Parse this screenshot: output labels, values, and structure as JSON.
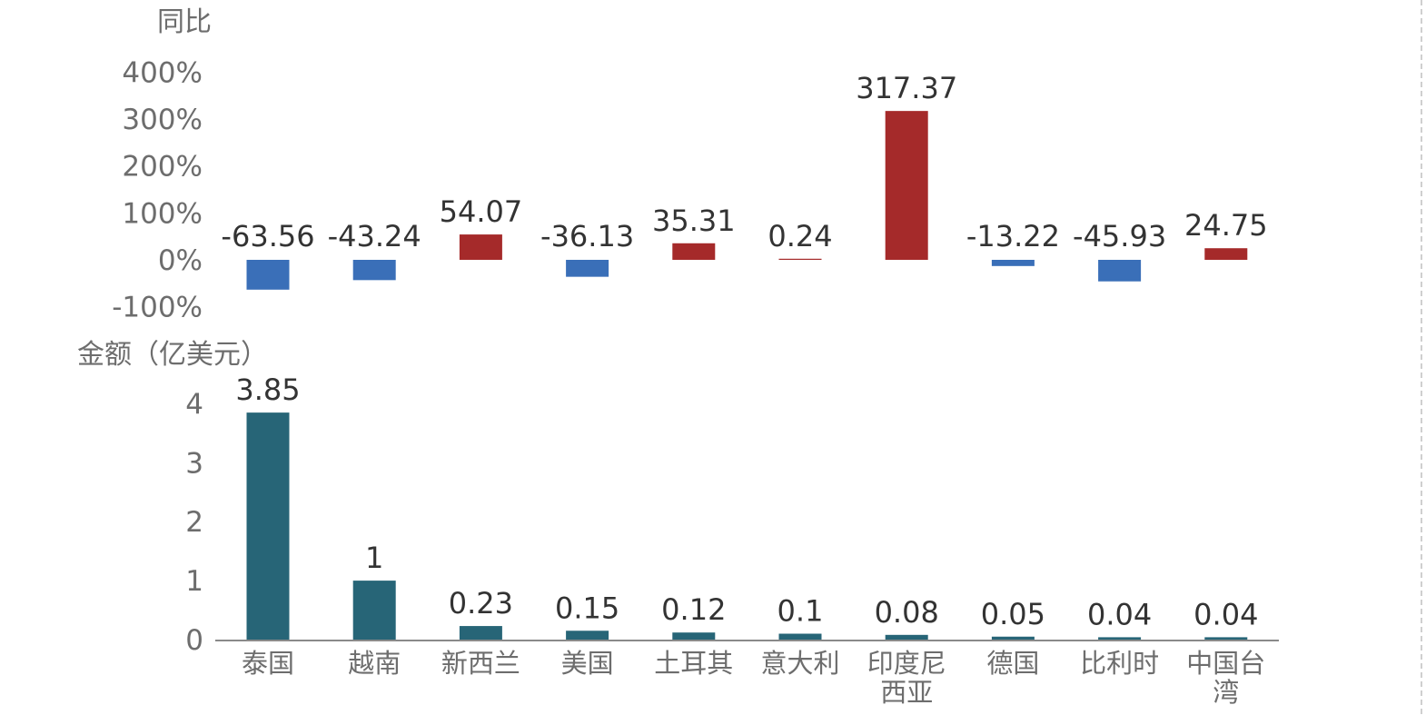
{
  "chart_data": [
    {
      "type": "bar",
      "ylabel": "同比",
      "yticks": [
        "400%",
        "300%",
        "200%",
        "100%",
        "0%",
        "-100%"
      ],
      "ytick_values": [
        400,
        300,
        200,
        100,
        0,
        -100
      ],
      "ylim": [
        -100,
        400
      ],
      "categories": [
        "泰国",
        "越南",
        "新西兰",
        "美国",
        "土耳其",
        "意大利",
        "印度尼西亚",
        "德国",
        "比利时",
        "中国台湾"
      ],
      "values": [
        -63.56,
        -43.24,
        54.07,
        -36.13,
        35.31,
        0.24,
        317.37,
        -13.22,
        -45.93,
        24.75
      ],
      "data_labels": [
        "-63.56",
        "-43.24",
        "54.07",
        "-36.13",
        "35.31",
        "0.24",
        "317.37",
        "-13.22",
        "-45.93",
        "24.75"
      ],
      "colors": {
        "positive": "#a52a2a",
        "negative": "#3a6fb8"
      }
    },
    {
      "type": "bar",
      "ylabel": "金额（亿美元）",
      "yticks": [
        "4",
        "3",
        "2",
        "1",
        "0"
      ],
      "ytick_values": [
        4,
        3,
        2,
        1,
        0
      ],
      "ylim": [
        0,
        4
      ],
      "categories": [
        "泰国",
        "越南",
        "新西兰",
        "美国",
        "土耳其",
        "意大利",
        "印度尼西亚",
        "德国",
        "比利时",
        "中国台湾"
      ],
      "category_lines": [
        [
          "泰国"
        ],
        [
          "越南"
        ],
        [
          "新西兰"
        ],
        [
          "美国"
        ],
        [
          "土耳其"
        ],
        [
          "意大利"
        ],
        [
          "印度尼",
          "西亚"
        ],
        [
          "德国"
        ],
        [
          "比利时"
        ],
        [
          "中国台",
          "湾"
        ]
      ],
      "values": [
        3.85,
        1,
        0.23,
        0.15,
        0.12,
        0.1,
        0.08,
        0.05,
        0.04,
        0.04
      ],
      "data_labels": [
        "3.85",
        "1",
        "0.23",
        "0.15",
        "0.12",
        "0.1",
        "0.08",
        "0.05",
        "0.04",
        "0.04"
      ],
      "colors": {
        "bar": "#276577"
      }
    }
  ]
}
